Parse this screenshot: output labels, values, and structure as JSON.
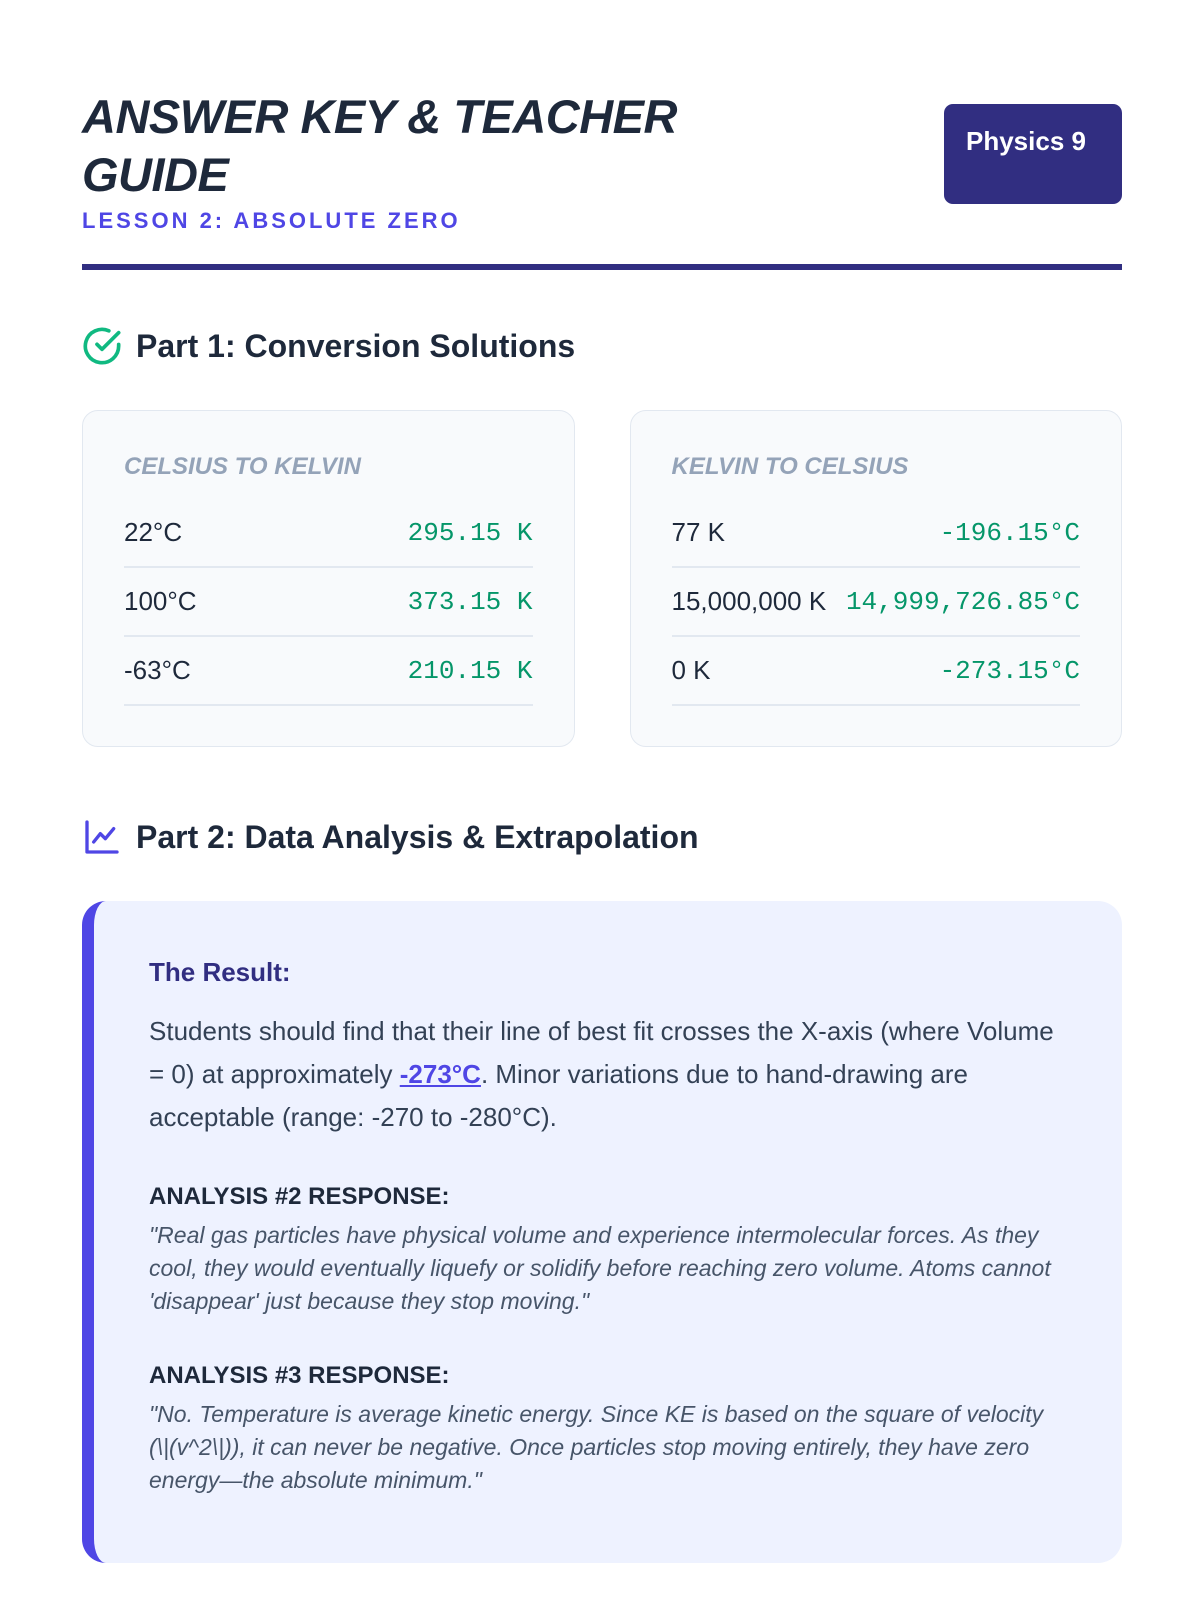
{
  "header": {
    "title": "ANSWER KEY & TEACHER GUIDE",
    "subtitle": "LESSON 2: ABSOLUTE ZERO",
    "badge": "Physics 9"
  },
  "part1": {
    "heading": "Part 1: Conversion Solutions",
    "tables": [
      {
        "title": "CELSIUS TO KELVIN",
        "rows": [
          [
            "22°C",
            "295.15 K"
          ],
          [
            "100°C",
            "373.15 K"
          ],
          [
            "-63°C",
            "210.15 K"
          ]
        ]
      },
      {
        "title": "KELVIN TO CELSIUS",
        "rows": [
          [
            "77 K",
            "-196.15°C"
          ],
          [
            "15,000,000 K",
            "14,999,726.85°C"
          ],
          [
            "0 K",
            "-273.15°C"
          ]
        ]
      }
    ]
  },
  "part2": {
    "heading": "Part 2: Data Analysis & Extrapolation",
    "result": {
      "label": "The Result:",
      "text_before": "Students should find that their line of best fit crosses the X-axis (where Volume = 0) at approximately ",
      "highlight": "-273°C",
      "text_after": ". Minor variations due to hand-drawing are acceptable (range: -270 to -280°C)."
    },
    "responses": [
      {
        "label": "ANALYSIS #2 RESPONSE:",
        "text": "\"Real gas particles have physical volume and experience intermolecular forces. As they cool, they would eventually liquefy or solidify before reaching zero volume. Atoms cannot 'disappear' just because they stop moving.\""
      },
      {
        "label": "ANALYSIS #3 RESPONSE:",
        "text": "\"No. Temperature is average kinetic energy. Since KE is based on the square of velocity (\\|(v^2\\|)), it can never be negative. Once particles stop moving entirely, they have zero energy—the absolute minimum.\""
      }
    ]
  }
}
